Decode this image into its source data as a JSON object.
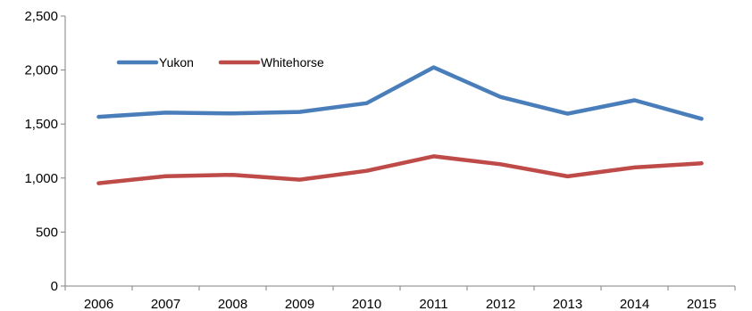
{
  "chart_data": {
    "type": "line",
    "title": "",
    "xlabel": "",
    "ylabel": "",
    "categories": [
      "2006",
      "2007",
      "2008",
      "2009",
      "2010",
      "2011",
      "2012",
      "2013",
      "2014",
      "2015"
    ],
    "ylim": [
      0,
      2500
    ],
    "yticks": [
      0,
      500,
      1000,
      1500,
      2000,
      2500
    ],
    "ytick_labels": [
      "0",
      "500",
      "1,000",
      "1,500",
      "2,000",
      "2,500"
    ],
    "grid": false,
    "legend_position": "top-left",
    "series": [
      {
        "name": "Yukon",
        "color": "#4a7ebb",
        "values": [
          1567,
          1606,
          1598,
          1612,
          1693,
          2025,
          1751,
          1596,
          1720,
          1549
        ]
      },
      {
        "name": "Whitehorse",
        "color": "#be4b48",
        "values": [
          952,
          1017,
          1030,
          985,
          1067,
          1201,
          1128,
          1016,
          1098,
          1136
        ]
      }
    ]
  }
}
